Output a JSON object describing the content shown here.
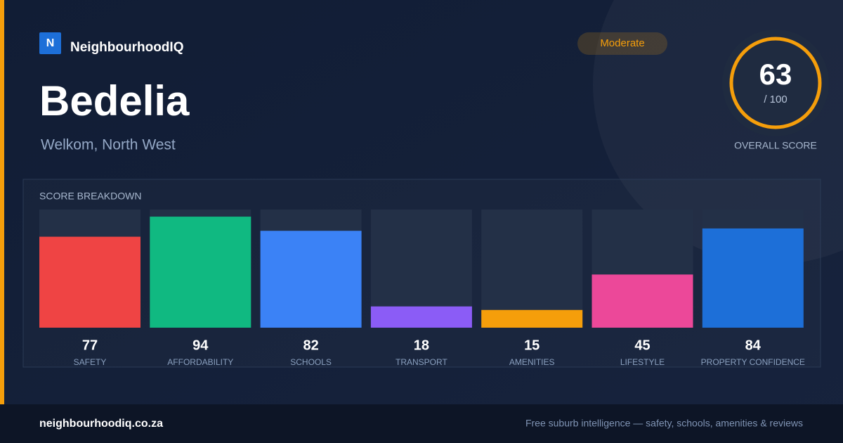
{
  "header": {
    "logo": "N",
    "brand": "NeighbourhoodIQ",
    "badge": "Moderate"
  },
  "suburb": {
    "name": "Bedelia",
    "location": "Welkom, North West"
  },
  "score": {
    "value": 63,
    "max_label": "/ 100",
    "caption": "OVERALL SCORE"
  },
  "chart_data": {
    "type": "bar",
    "title": "SCORE BREAKDOWN",
    "categories": [
      "SAFETY",
      "AFFORDABILITY",
      "SCHOOLS",
      "TRANSPORT",
      "AMENITIES",
      "LIFESTYLE",
      "PROPERTY CONFIDENCE"
    ],
    "values": [
      77,
      94,
      82,
      18,
      15,
      45,
      84
    ],
    "colors": [
      "#ef4444",
      "#10b981",
      "#3b82f6",
      "#8b5cf6",
      "#f59e0b",
      "#ec4899",
      "#1d6fd8"
    ],
    "ylim": [
      0,
      100
    ]
  },
  "footer": {
    "url": "neighbourhoodiq.co.za",
    "tagline": "Free suburb intelligence — safety, schools, amenities & reviews"
  }
}
